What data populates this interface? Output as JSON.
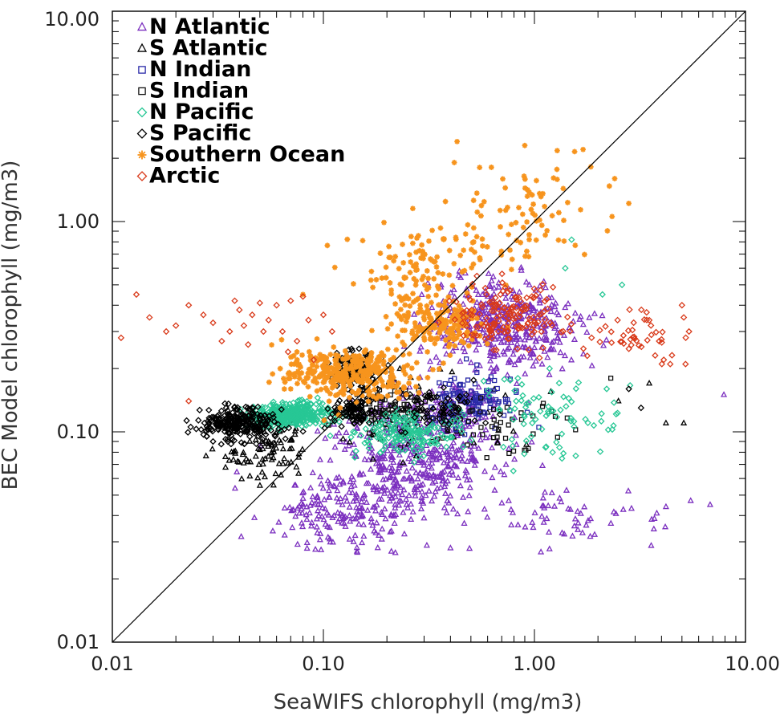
{
  "chart_data": {
    "type": "scatter",
    "title": "",
    "xlabel": "SeaWIFS chlorophyll (mg/m3)",
    "ylabel": "BEC Model chlorophyll (mg/m3)",
    "xscale": "log",
    "yscale": "log",
    "xlim": [
      0.01,
      10.0
    ],
    "ylim": [
      0.01,
      10.0
    ],
    "xticks": [
      "0.01",
      "0.10",
      "1.00",
      "10.00"
    ],
    "yticks": [
      "0.01",
      "0.10",
      "1.00",
      "10.00"
    ],
    "grid": false,
    "legend_position": "top-left",
    "reference_line": "1:1",
    "series": [
      {
        "name": "N Atlantic",
        "marker": "triangle",
        "color": "#7b2fbf",
        "clusters": [
          [
            0.7,
            0.32,
            0.35,
            0.22,
            420
          ],
          [
            0.25,
            0.07,
            0.4,
            0.25,
            380
          ],
          [
            0.12,
            0.04,
            0.35,
            0.18,
            160
          ],
          [
            1.5,
            0.04,
            0.45,
            0.12,
            60
          ],
          [
            0.4,
            0.12,
            0.3,
            0.15,
            140
          ]
        ],
        "points": [
          [
            7.9,
            0.15
          ],
          [
            6.8,
            0.045
          ],
          [
            5.5,
            0.047
          ],
          [
            4.2,
            0.044
          ],
          [
            3.8,
            0.041
          ],
          [
            0.4,
            0.028
          ],
          [
            0.21,
            0.027
          ]
        ]
      },
      {
        "name": "S Atlantic",
        "marker": "triangle",
        "color": "#000000",
        "clusters": [
          [
            0.05,
            0.085,
            0.22,
            0.15,
            90
          ],
          [
            0.3,
            0.12,
            0.45,
            0.2,
            60
          ]
        ],
        "points": [
          [
            5.1,
            0.11
          ],
          [
            3.5,
            0.17
          ],
          [
            2.5,
            0.14
          ],
          [
            4.2,
            0.11
          ]
        ]
      },
      {
        "name": "N Indian",
        "marker": "square",
        "color": "#2a2aa8",
        "clusters": [
          [
            0.5,
            0.14,
            0.25,
            0.12,
            120
          ]
        ],
        "points": []
      },
      {
        "name": "S Indian",
        "marker": "square",
        "color": "#111111",
        "clusters": [
          [
            0.2,
            0.13,
            0.2,
            0.12,
            90
          ],
          [
            0.6,
            0.11,
            0.35,
            0.14,
            50
          ]
        ],
        "points": [
          [
            2.3,
            0.18
          ]
        ]
      },
      {
        "name": "N Pacific",
        "marker": "diamond",
        "color": "#27c795",
        "clusters": [
          [
            0.07,
            0.12,
            0.2,
            0.05,
            350
          ],
          [
            0.25,
            0.1,
            0.25,
            0.1,
            180
          ],
          [
            1.2,
            0.12,
            0.35,
            0.2,
            80
          ]
        ],
        "points": [
          [
            2.1,
            0.45
          ],
          [
            2.6,
            0.5
          ],
          [
            1.4,
            0.6
          ],
          [
            1.5,
            0.82
          ],
          [
            2.2,
            0.16
          ]
        ]
      },
      {
        "name": "S Pacific",
        "marker": "diamond",
        "color": "#000000",
        "clusters": [
          [
            0.04,
            0.11,
            0.2,
            0.08,
            260
          ],
          [
            0.14,
            0.2,
            0.1,
            0.08,
            120
          ],
          [
            0.14,
            0.125,
            0.1,
            0.07,
            90
          ],
          [
            0.35,
            0.13,
            0.25,
            0.1,
            60
          ]
        ],
        "points": [
          [
            0.03,
            0.09
          ],
          [
            0.028,
            0.095
          ],
          [
            3.2,
            0.13
          ],
          [
            2.8,
            0.16
          ]
        ]
      },
      {
        "name": "Southern Ocean",
        "marker": "asterisk",
        "color": "#f7941d",
        "clusters": [
          [
            0.3,
            0.55,
            0.3,
            0.25,
            140
          ],
          [
            0.9,
            1.1,
            0.35,
            0.25,
            80
          ],
          [
            0.13,
            0.19,
            0.3,
            0.12,
            330
          ],
          [
            0.35,
            0.32,
            0.2,
            0.12,
            140
          ]
        ],
        "points": [
          [
            1.55,
            2.15
          ],
          [
            1.7,
            2.2
          ],
          [
            0.9,
            2.3
          ],
          [
            0.43,
            2.4
          ],
          [
            2.8,
            1.22
          ],
          [
            2.4,
            1.6
          ],
          [
            1.85,
            1.82
          ],
          [
            0.07,
            0.16
          ],
          [
            0.08,
            0.45
          ]
        ]
      },
      {
        "name": "Arctic",
        "marker": "diamond",
        "color": "#d93a1a",
        "clusters": [
          [
            0.75,
            0.35,
            0.25,
            0.15,
            160
          ],
          [
            3.0,
            0.28,
            0.2,
            0.12,
            40
          ]
        ],
        "points": [
          [
            0.01,
            0.33
          ],
          [
            0.011,
            0.28
          ],
          [
            0.013,
            0.45
          ],
          [
            0.015,
            0.35
          ],
          [
            0.018,
            0.3
          ],
          [
            0.02,
            0.32
          ],
          [
            0.023,
            0.4
          ],
          [
            0.023,
            0.14
          ],
          [
            0.027,
            0.36
          ],
          [
            0.03,
            0.33
          ],
          [
            0.033,
            0.27
          ],
          [
            0.036,
            0.3
          ],
          [
            0.038,
            0.42
          ],
          [
            0.04,
            0.38
          ],
          [
            0.042,
            0.32
          ],
          [
            0.044,
            0.26
          ],
          [
            0.046,
            0.36
          ],
          [
            0.05,
            0.41
          ],
          [
            0.052,
            0.3
          ],
          [
            0.055,
            0.34
          ],
          [
            0.06,
            0.4
          ],
          [
            0.064,
            0.3
          ],
          [
            0.068,
            0.24
          ],
          [
            0.07,
            0.42
          ],
          [
            0.075,
            0.27
          ],
          [
            0.08,
            0.44
          ],
          [
            0.085,
            0.34
          ],
          [
            0.09,
            0.22
          ],
          [
            0.1,
            0.36
          ],
          [
            0.11,
            0.3
          ],
          [
            5.1,
            0.35
          ],
          [
            5.4,
            0.3
          ],
          [
            4.1,
            0.22
          ],
          [
            4.4,
            0.21
          ],
          [
            5.2,
            0.21
          ],
          [
            3.4,
            0.37
          ],
          [
            3.9,
            0.27
          ],
          [
            5.0,
            0.4
          ]
        ]
      }
    ]
  }
}
